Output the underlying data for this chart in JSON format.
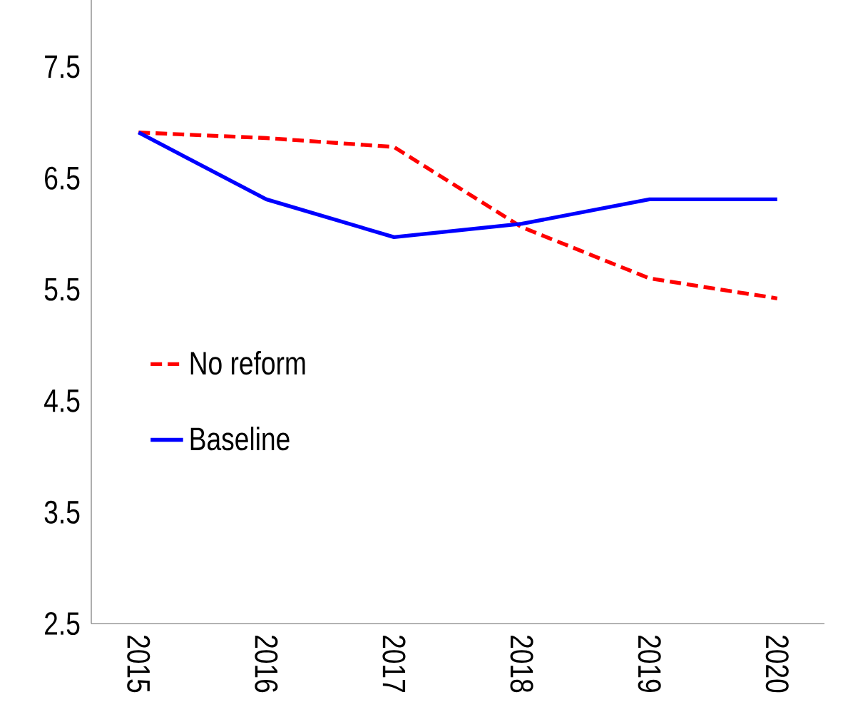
{
  "chart_data": {
    "type": "line",
    "categories": [
      "2015",
      "2016",
      "2017",
      "2018",
      "2019",
      "2020"
    ],
    "series": [
      {
        "name": "No reform",
        "color": "#ff0000",
        "line_style": "dashed",
        "values": [
          6.91,
          6.86,
          6.78,
          6.06,
          5.6,
          5.42
        ]
      },
      {
        "name": "Baseline",
        "color": "#0000ff",
        "line_style": "solid",
        "values": [
          6.91,
          6.31,
          5.97,
          6.09,
          6.31,
          6.31
        ]
      }
    ],
    "ylim": [
      2.5,
      8.1
    ],
    "yticks": [
      2.5,
      3.5,
      4.5,
      5.5,
      6.5,
      7.5
    ],
    "legend": "left",
    "grid": false,
    "marker": "none"
  }
}
